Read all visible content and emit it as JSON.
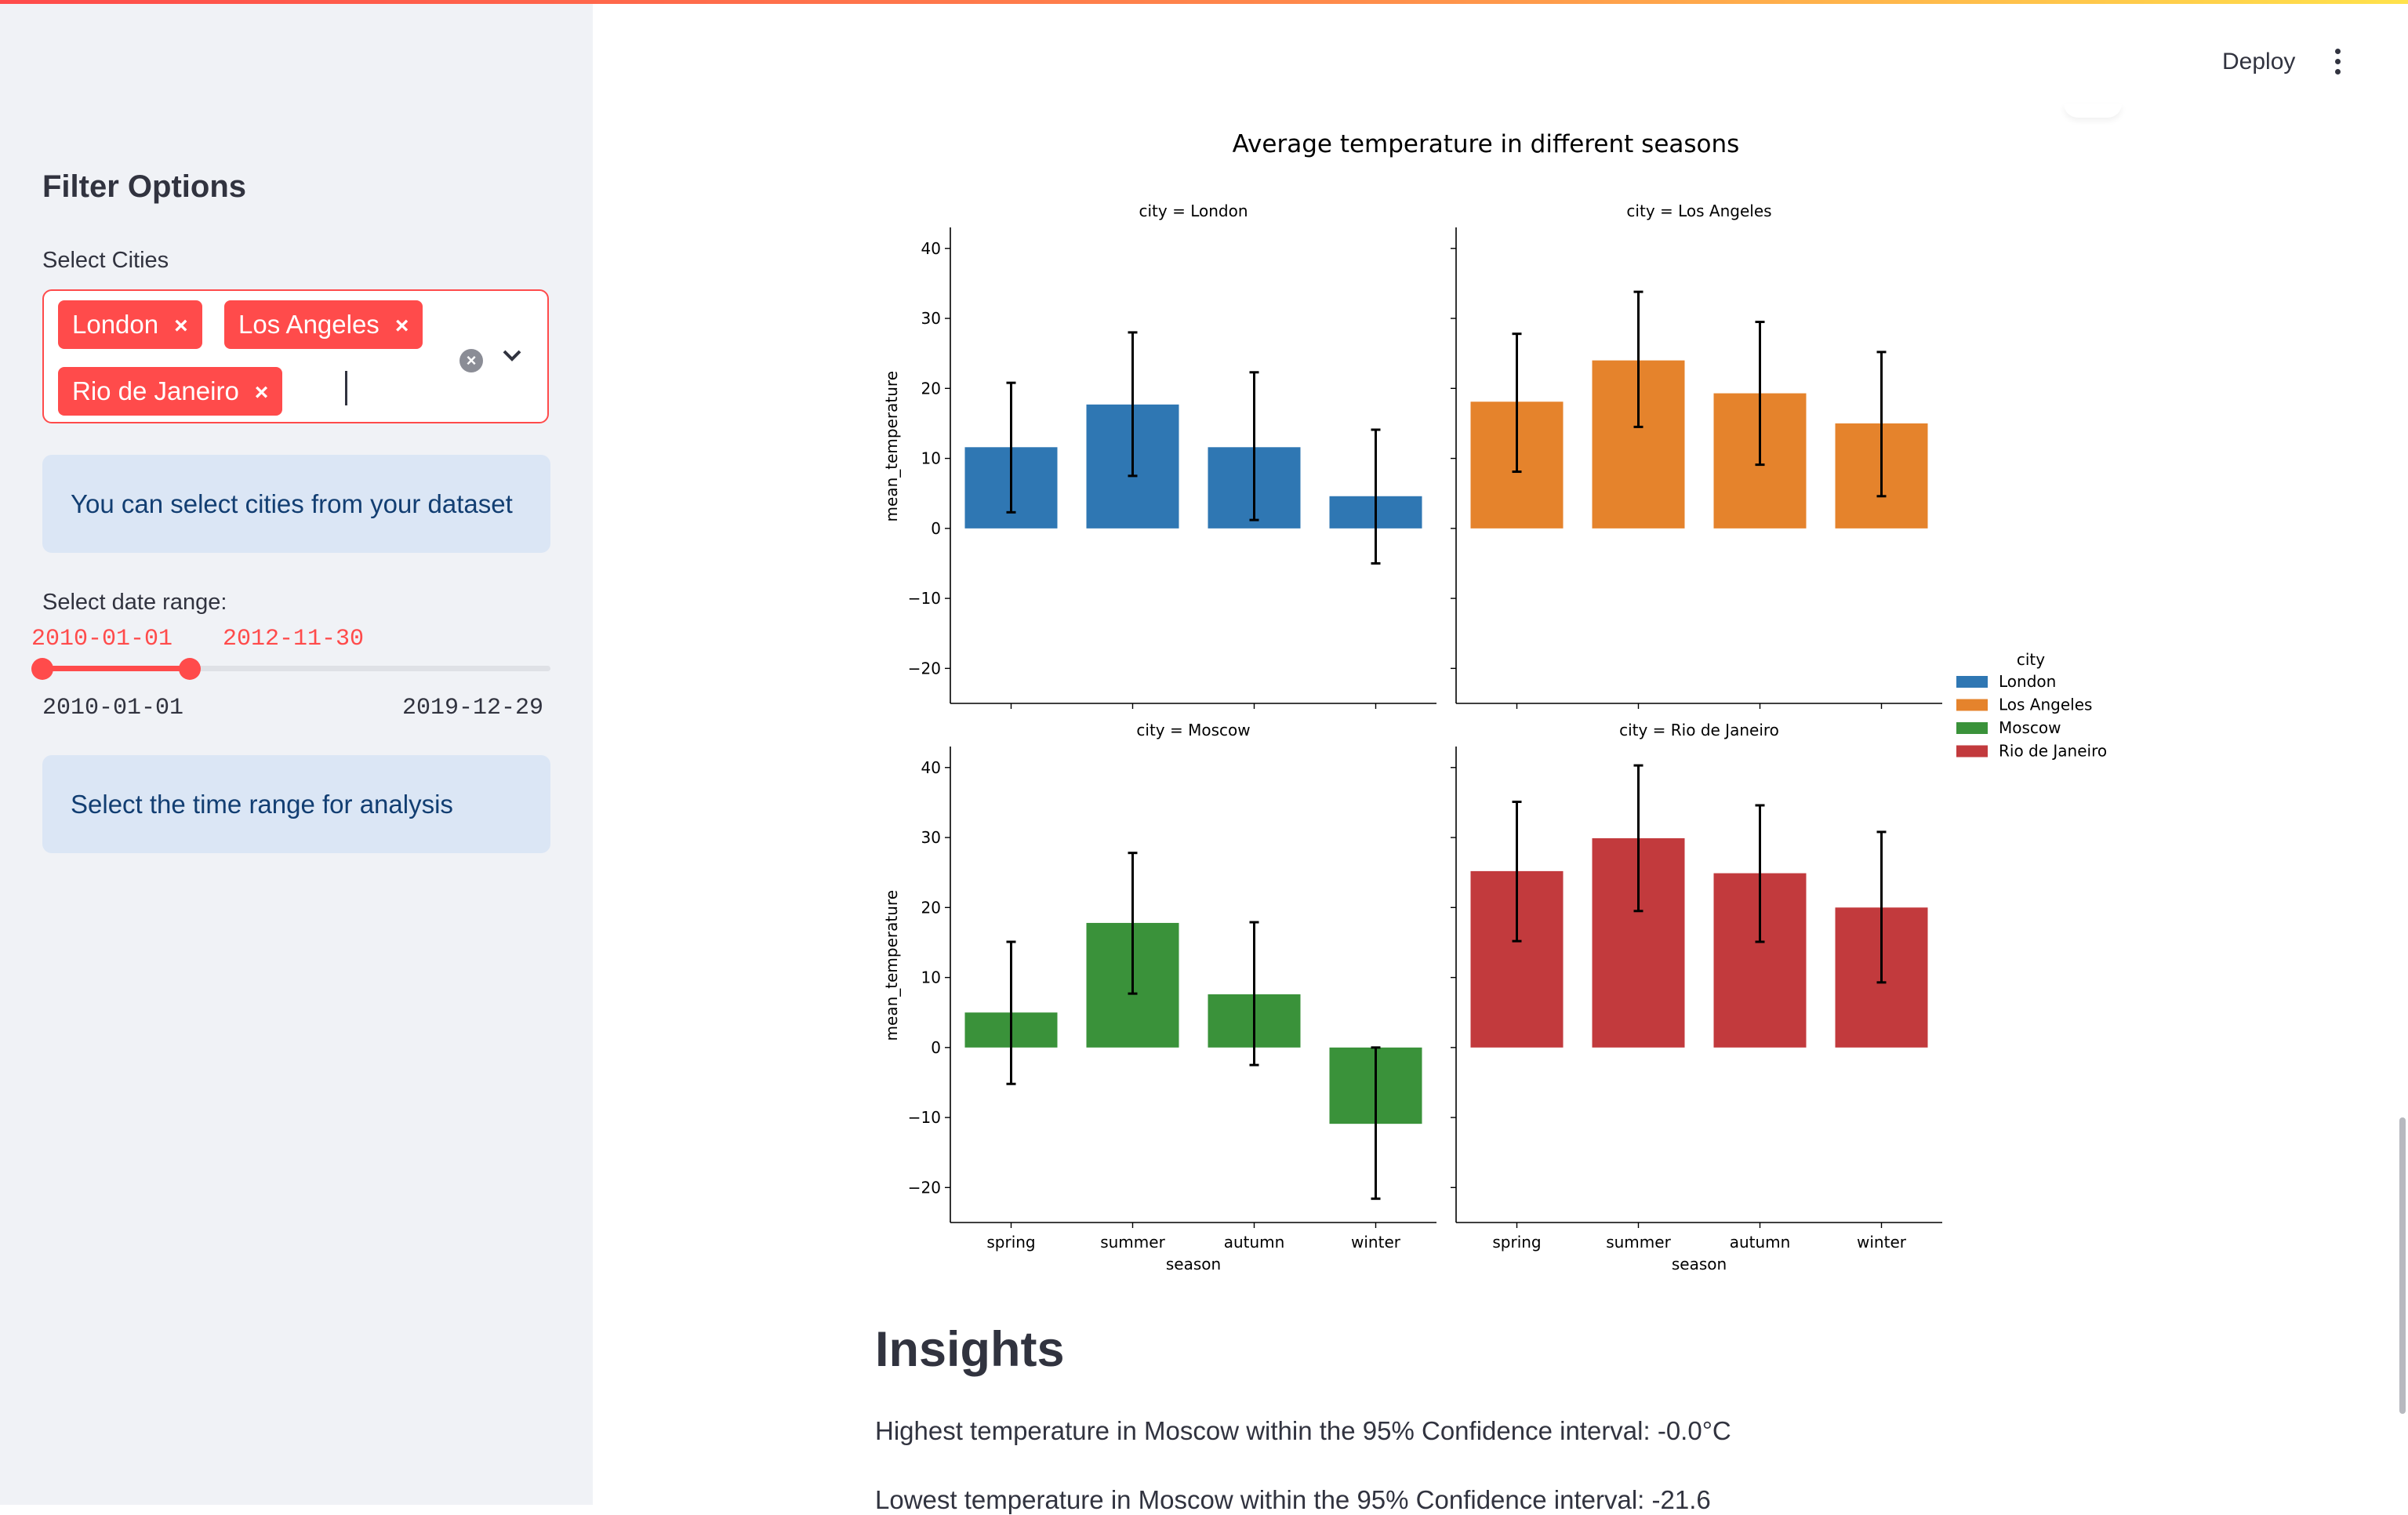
{
  "header": {
    "deploy_label": "Deploy"
  },
  "sidebar": {
    "title": "Filter Options",
    "select_cities_label": "Select Cities",
    "selected_cities": [
      "London",
      "Los Angeles",
      "Rio de Janeiro"
    ],
    "chip_close_glyph": "×",
    "clear_glyph": "×",
    "cities_info": "You can select cities from your dataset",
    "date_range_label": "Select date range:",
    "date_range_value_start": "2010-01-01",
    "date_range_value_end": "2012-11-30",
    "date_min": "2010-01-01",
    "date_max": "2019-12-29",
    "slider_start_fraction": 0.0,
    "slider_end_fraction": 0.29,
    "time_info": "Select the time range for analysis"
  },
  "main": {
    "insights_title": "Insights",
    "insight_1": "Highest temperature in Moscow within the 95% Confidence interval: -0.0°C",
    "insight_2": "Lowest temperature in Moscow within the 95% Confidence interval: -21.6"
  },
  "colors": {
    "accent": "#ff4b4b",
    "info_bg": "#dbe6f5",
    "info_text": "#123e72"
  },
  "chart_data": {
    "type": "bar",
    "title": "Average temperature in different seasons",
    "xlabel": "season",
    "ylabel": "mean_temperature",
    "ylim": [
      -25,
      43
    ],
    "yticks": [
      -20,
      -10,
      0,
      10,
      20,
      30,
      40
    ],
    "categories": [
      "spring",
      "summer",
      "autumn",
      "winter"
    ],
    "legend_title": "city",
    "legend_position": "right",
    "panels": [
      {
        "title": "city = London",
        "name": "London",
        "color": "#2f77b3",
        "values": [
          11.6,
          17.7,
          11.6,
          4.6
        ],
        "err_low": [
          2.3,
          7.5,
          1.2,
          -5.0
        ],
        "err_high": [
          20.8,
          28.0,
          22.3,
          14.1
        ]
      },
      {
        "title": "city = Los Angeles",
        "name": "Los Angeles",
        "color": "#e5832c",
        "values": [
          18.1,
          24.0,
          19.3,
          15.0
        ],
        "err_low": [
          8.1,
          14.5,
          9.1,
          4.6
        ],
        "err_high": [
          27.8,
          33.8,
          29.5,
          25.2
        ]
      },
      {
        "title": "city = Moscow",
        "name": "Moscow",
        "color": "#3a923a",
        "values": [
          5.0,
          17.8,
          7.6,
          -10.9
        ],
        "err_low": [
          -5.2,
          7.7,
          -2.5,
          -21.6
        ],
        "err_high": [
          15.1,
          27.8,
          17.9,
          0.0
        ]
      },
      {
        "title": "city = Rio de Janeiro",
        "name": "Rio de Janeiro",
        "color": "#c23a3d",
        "values": [
          25.2,
          29.9,
          24.9,
          20.0
        ],
        "err_low": [
          15.2,
          19.5,
          15.1,
          9.3
        ],
        "err_high": [
          35.1,
          40.3,
          34.6,
          30.8
        ]
      }
    ]
  }
}
